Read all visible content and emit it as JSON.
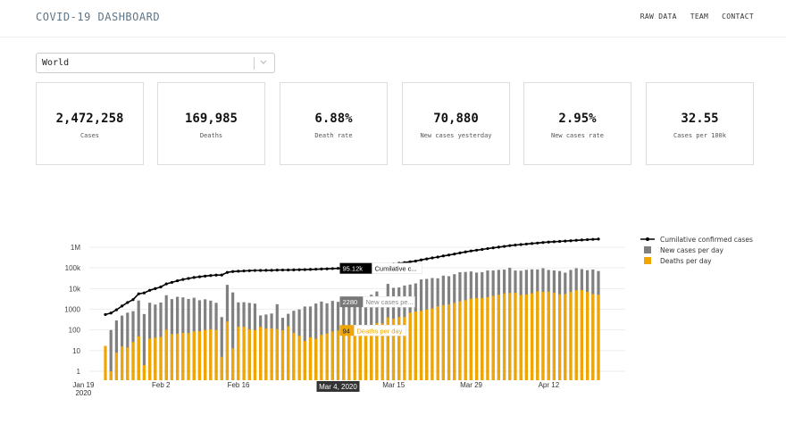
{
  "header": {
    "title": "COVID-19 DASHBOARD",
    "nav": [
      "RAW DATA",
      "TEAM",
      "CONTACT"
    ]
  },
  "region_select": {
    "value": "World"
  },
  "stats": [
    {
      "value": "2,472,258",
      "label": "Cases"
    },
    {
      "value": "169,985",
      "label": "Deaths"
    },
    {
      "value": "6.88%",
      "label": "Death rate"
    },
    {
      "value": "70,880",
      "label": "New cases yesterday"
    },
    {
      "value": "2.95%",
      "label": "New cases rate"
    },
    {
      "value": "32.55",
      "label": "Cases per 100k"
    }
  ],
  "colors": {
    "accent": "#5f7586",
    "cumulative": "#000000",
    "new_cases": "#808080",
    "deaths": "#f0a500"
  },
  "chart_data": {
    "type": "bar",
    "scale": "log",
    "ytick_labels": [
      "1",
      "10",
      "100",
      "1000",
      "10k",
      "100k",
      "1M"
    ],
    "ytick_values": [
      1,
      10,
      100,
      1000,
      10000,
      100000,
      1000000
    ],
    "xtick_labels": [
      "Jan 19",
      "Feb 2",
      "Feb 16",
      "Mar 15",
      "Mar 29",
      "Apr 12"
    ],
    "xtick_sublabel": "2020",
    "x_start": "2020-01-22",
    "x_end": "2020-04-20",
    "legend_position": "top-right",
    "series": [
      {
        "name": "Cumilative confirmed cases",
        "type": "line",
        "values": [
          555,
          654,
          941,
          1434,
          2118,
          2927,
          5578,
          6166,
          8234,
          9927,
          12038,
          16787,
          19881,
          23892,
          27635,
          30794,
          34391,
          37120,
          40150,
          42762,
          44802,
          45221,
          60368,
          66885,
          69030,
          71224,
          73258,
          75136,
          75639,
          76197,
          76819,
          78572,
          78958,
          79561,
          80406,
          81388,
          82746,
          84112,
          86011,
          88369,
          90306,
          92840,
          95120,
          97886,
          101801,
          105847,
          109821,
          113590,
          118620,
          125865,
          128343,
          145193,
          156094,
          167446,
          181527,
          197142,
          214910,
          242708,
          272166,
          304524,
          335955,
          378287,
          417966,
          467593,
          529591,
          593291,
          660693,
          720140,
          782389,
          857487,
          932605,
          1013157,
          1095917,
          1197405,
          1272115,
          1345101,
          1426096,
          1511104,
          1595350,
          1691719,
          1771514,
          1846680,
          1917319,
          1976191,
          2056054,
          2152437,
          2240190,
          2317759,
          2401378,
          2472258
        ]
      },
      {
        "name": "New cases per day",
        "type": "bar",
        "values": [
          null,
          99,
          287,
          493,
          684,
          809,
          2651,
          588,
          2068,
          1693,
          2111,
          4749,
          3094,
          4011,
          3743,
          3159,
          3597,
          2729,
          3030,
          2612,
          2040,
          419,
          15147,
          6517,
          2145,
          2194,
          2034,
          1878,
          503,
          558,
          622,
          1753,
          386,
          603,
          845,
          982,
          1358,
          1366,
          1899,
          2358,
          1937,
          2534,
          2280,
          2766,
          3915,
          4046,
          3974,
          3769,
          5030,
          7245,
          2478,
          16850,
          10901,
          11352,
          14081,
          15615,
          17768,
          27798,
          29458,
          32358,
          31431,
          42332,
          39679,
          49627,
          61998,
          63700,
          67402,
          59447,
          62249,
          75098,
          75118,
          80552,
          82760,
          101488,
          74710,
          72986,
          80995,
          85008,
          84246,
          96369,
          79795,
          75166,
          70639,
          58872,
          79863,
          96383,
          87753,
          77569,
          83619,
          70880
        ]
      },
      {
        "name": "Deaths per day",
        "type": "bar",
        "values": [
          17,
          1,
          8,
          16,
          14,
          26,
          49,
          2,
          38,
          42,
          46,
          103,
          64,
          66,
          72,
          70,
          85,
          87,
          100,
          107,
          100,
          5,
          254,
          13,
          143,
          142,
          106,
          98,
          139,
          115,
          118,
          109,
          97,
          150,
          71,
          52,
          29,
          44,
          37,
          58,
          67,
          84,
          94,
          88,
          89,
          111,
          142,
          140,
          171,
          209,
          205,
          403,
          349,
          425,
          424,
          681,
          768,
          824,
          969,
          1085,
          1389,
          1591,
          1720,
          2030,
          2409,
          2746,
          3268,
          3429,
          3454,
          3812,
          4451,
          5071,
          5814,
          6162,
          6289,
          4844,
          5187,
          5843,
          7389,
          6959,
          7168,
          6247,
          5394,
          5497,
          6895,
          8318,
          8419,
          6895,
          5429,
          5032
        ]
      }
    ],
    "hover": {
      "date": "Mar 4, 2020",
      "cumulative_label": "95.12k",
      "cumulative_name": "Cumilative c...",
      "new_cases_label": "2280",
      "new_cases_name": "New cases pe...",
      "deaths_label": "94",
      "deaths_name": "Deaths per day"
    }
  }
}
